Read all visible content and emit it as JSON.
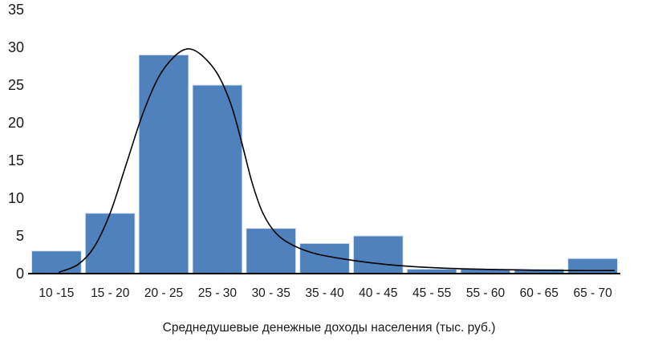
{
  "chart_data": {
    "type": "bar",
    "title": "",
    "categories": [
      "10 -15",
      "15 - 20",
      "20 - 25",
      "25 - 30",
      "30 - 35",
      "35 - 40",
      "40 - 45",
      "45 - 55",
      "55 - 60",
      "60 - 65",
      "65 - 70"
    ],
    "values": [
      3,
      8,
      29,
      25,
      6,
      4,
      5,
      0.6,
      0.6,
      0.6,
      2
    ],
    "xlabel": "Среднедушевые денежные доходы населения (тыс. руб.)",
    "ylabel": "",
    "ylim": [
      0,
      35
    ],
    "yticks": [
      0,
      5,
      10,
      15,
      20,
      25,
      30,
      35
    ],
    "grid": false,
    "legend": "none",
    "bar_color": "#4f81bd",
    "bar_edge_color": "#dbe4f0",
    "axis_color": "#000000",
    "curve": {
      "name": "density-curve",
      "color": "#000000",
      "points": [
        [
          0.55,
          0.2
        ],
        [
          0.9,
          1.2
        ],
        [
          1.2,
          3.5
        ],
        [
          1.5,
          8
        ],
        [
          1.8,
          14.5
        ],
        [
          2.1,
          21
        ],
        [
          2.4,
          26
        ],
        [
          2.7,
          28.8
        ],
        [
          2.95,
          29.8
        ],
        [
          3.2,
          29
        ],
        [
          3.5,
          26.5
        ],
        [
          3.75,
          22.5
        ],
        [
          3.95,
          17.5
        ],
        [
          4.15,
          12
        ],
        [
          4.35,
          8
        ],
        [
          4.6,
          5.3
        ],
        [
          4.9,
          3.8
        ],
        [
          5.3,
          2.7
        ],
        [
          5.8,
          2.0
        ],
        [
          6.4,
          1.4
        ],
        [
          7.0,
          1.0
        ],
        [
          7.8,
          0.7
        ],
        [
          8.6,
          0.55
        ],
        [
          9.4,
          0.45
        ],
        [
          10.2,
          0.4
        ],
        [
          10.9,
          0.4
        ]
      ]
    }
  }
}
